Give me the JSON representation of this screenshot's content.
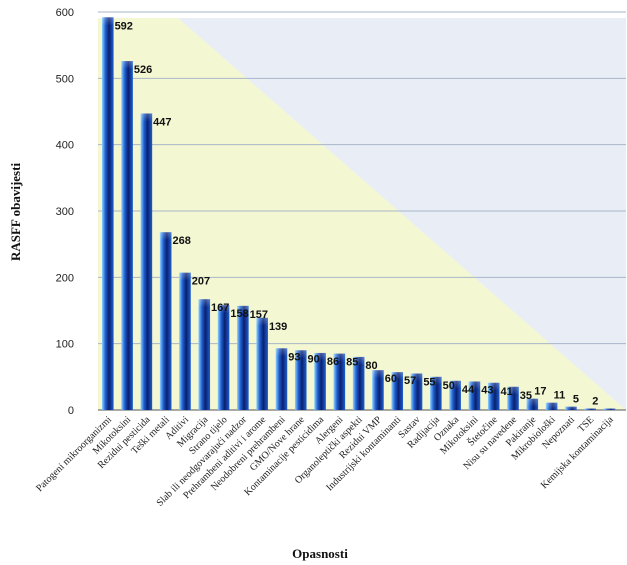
{
  "chart_data": {
    "type": "bar",
    "title": "",
    "xlabel": "Opasnosti",
    "ylabel": "RASFF obavijesti",
    "ylim": [
      0,
      600
    ],
    "yticks": [
      0,
      100,
      200,
      300,
      400,
      500,
      600
    ],
    "grid": true,
    "legend": "none",
    "colors": {
      "bar_dark": "#0b1f6e",
      "bar_mid": "#1d5fd0",
      "bar_light": "#8fd0ff",
      "plot_bg": "#e9eef6",
      "wedge": "#f3f7d2",
      "grid": "#a9b6c8"
    },
    "categories": [
      "Patogeni mikroorganizmi",
      "Mikotoksini",
      "Rezidui pesticida",
      "Teški metali",
      "Aditivi",
      "Migracija",
      "Strano tijelo",
      "Slab ili neodgovarajući nadzor",
      "Prehrambeni aditivi i arome",
      "Neodobreni prehrambeni",
      "GMO/Nove hrane",
      "Kontaminacije pesticidima",
      "Alergeni",
      "Organoleptički aspekti",
      "Rezidui VMP",
      "Industrijski kontaminanti",
      "Sastav",
      "Radijacija",
      "Oznaka",
      "Mikotoksini",
      "Štetočine",
      "Nisu su navedene",
      "Pakiranje",
      "Mikrobiološki",
      "Nepoznati",
      "TSE",
      "Kemijska kontaminacija"
    ],
    "values": [
      592,
      526,
      447,
      268,
      207,
      167,
      158,
      157,
      139,
      93,
      90,
      86,
      85,
      80,
      60,
      57,
      55,
      50,
      44,
      43,
      41,
      35,
      17,
      11,
      5,
      2,
      2
    ],
    "data_labels": [
      "592",
      "526",
      "447",
      "268",
      "207",
      "167",
      "158",
      "157",
      "139",
      "93",
      "90",
      "86",
      "85",
      "80",
      "60",
      "57",
      "55",
      "50",
      "44",
      "43",
      "41",
      "35",
      "17",
      "11",
      "5",
      "2",
      ""
    ]
  }
}
